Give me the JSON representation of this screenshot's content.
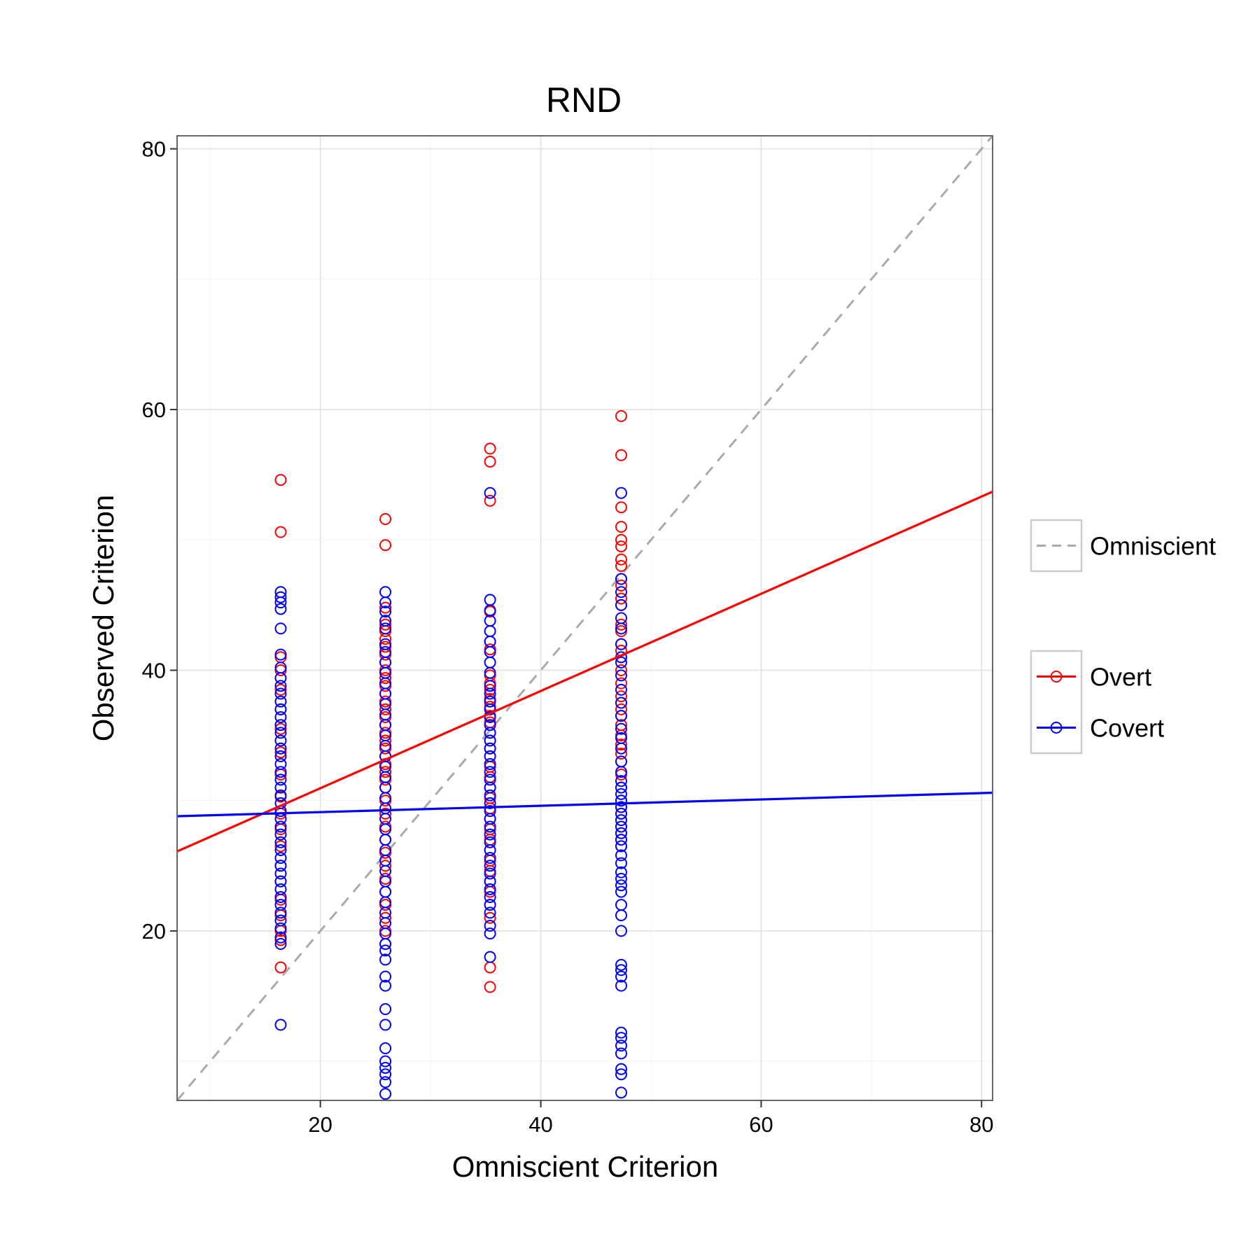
{
  "chart_data": {
    "type": "scatter",
    "title": "RND",
    "xlabel": "Omniscient Criterion",
    "ylabel": "Observed Criterion",
    "xlim": [
      7,
      81
    ],
    "ylim": [
      7,
      81
    ],
    "xticks": [
      "20",
      "40",
      "60",
      "80"
    ],
    "yticks": [
      "20",
      "40",
      "60",
      "80"
    ],
    "grid": true,
    "legend_position": "right",
    "colors": {
      "overt": "#ff0000",
      "covert": "#0000ff",
      "omniscient": "#aaaaaa"
    },
    "legend": [
      {
        "group": "reference",
        "label": "Omniscient",
        "style": "dashed",
        "marker": "none"
      },
      {
        "group": "series",
        "label": "Overt",
        "style": "solid",
        "marker": "circle"
      },
      {
        "group": "series",
        "label": "Covert",
        "style": "solid",
        "marker": "circle"
      }
    ],
    "reference_line": {
      "name": "Omniscient",
      "slope": 1,
      "intercept": 0
    },
    "fit_lines": [
      {
        "name": "Overt",
        "x": [
          7,
          81
        ],
        "y": [
          26.1,
          53.7
        ]
      },
      {
        "name": "Covert",
        "x": [
          7,
          81
        ],
        "y": [
          28.8,
          30.6
        ]
      }
    ],
    "series": [
      {
        "name": "Overt",
        "x": 16.4,
        "y": [
          54.6,
          50.6,
          41.0,
          40.0,
          38.5,
          37.0,
          35.5,
          33.7,
          32.0,
          30.3,
          29.0,
          27.8,
          26.5,
          25.0,
          23.8,
          22.4,
          21.2,
          20.0,
          19.3,
          17.2
        ]
      },
      {
        "name": "Overt",
        "x": 25.9,
        "y": [
          51.6,
          49.6,
          44.8,
          43.5,
          43.0,
          42.4,
          41.8,
          41.2,
          40.6,
          40.0,
          39.4,
          38.8,
          38.2,
          37.6,
          37.0,
          36.4,
          35.8,
          35.2,
          34.6,
          34.0,
          33.4,
          32.8,
          32.2,
          31.6,
          31.0,
          30.0,
          29.0,
          28.0,
          27.0,
          26.0,
          25.0,
          24.0,
          23.0,
          22.0,
          21.0,
          20.0,
          19.0
        ]
      },
      {
        "name": "Overt",
        "x": 35.4,
        "y": [
          57.0,
          56.0,
          53.0,
          44.5,
          42.2,
          41.6,
          39.6,
          39.0,
          38.5,
          37.8,
          37.2,
          36.5,
          36.0,
          35.2,
          34.6,
          34.0,
          33.4,
          32.6,
          31.8,
          31.0,
          30.2,
          29.4,
          28.6,
          27.8,
          27.0,
          26.2,
          25.4,
          24.6,
          23.8,
          23.0,
          22.0,
          21.0,
          17.2,
          15.7
        ]
      },
      {
        "name": "Overt",
        "x": 47.3,
        "y": [
          59.5,
          56.5,
          52.5,
          51.0,
          50.0,
          49.5,
          48.5,
          48.0,
          47.0,
          46.5,
          45.5,
          45.0,
          43.5,
          43.0,
          42.0,
          41.5,
          41.0,
          40.0,
          39.0,
          38.0,
          37.5,
          37.0,
          36.5,
          35.8,
          35.0,
          34.3,
          33.6,
          33.0,
          32.0,
          31.0,
          30.0,
          29.5,
          29.0,
          28.5,
          28.0,
          27.5,
          27.0,
          26.5
        ]
      },
      {
        "name": "Covert",
        "x": 16.4,
        "y": [
          46.0,
          45.6,
          45.2,
          44.7,
          43.2,
          41.2,
          40.2,
          39.4,
          38.8,
          38.2,
          37.6,
          37.0,
          36.4,
          35.8,
          35.2,
          34.6,
          34.0,
          33.4,
          32.8,
          32.2,
          31.6,
          31.0,
          30.4,
          29.8,
          29.2,
          28.6,
          28.0,
          27.4,
          26.8,
          26.2,
          25.6,
          25.0,
          24.4,
          23.8,
          23.2,
          22.6,
          22.0,
          21.4,
          20.8,
          20.2,
          19.5,
          19.0,
          12.8
        ]
      },
      {
        "name": "Covert",
        "x": 25.9,
        "y": [
          46.0,
          45.2,
          44.5,
          43.8,
          43.2,
          42.0,
          41.4,
          40.6,
          39.8,
          39.0,
          38.2,
          37.4,
          36.6,
          35.8,
          35.0,
          34.2,
          33.4,
          32.6,
          31.8,
          31.0,
          30.2,
          29.4,
          28.6,
          27.8,
          27.0,
          26.2,
          25.4,
          24.6,
          23.8,
          23.0,
          22.2,
          21.4,
          20.6,
          19.8,
          19.0,
          18.5,
          17.8,
          16.5,
          15.8,
          14.0,
          12.8,
          11.0,
          10.0,
          9.5,
          9.0,
          8.4,
          7.5
        ]
      },
      {
        "name": "Covert",
        "x": 35.4,
        "y": [
          53.6,
          45.4,
          44.6,
          43.8,
          43.0,
          42.2,
          41.4,
          40.6,
          39.8,
          38.8,
          38.2,
          37.6,
          37.0,
          36.4,
          35.8,
          35.2,
          34.6,
          34.0,
          33.4,
          32.8,
          32.2,
          31.6,
          31.0,
          30.4,
          29.8,
          29.2,
          28.6,
          28.0,
          27.4,
          26.8,
          26.2,
          25.6,
          25.0,
          24.4,
          23.8,
          23.2,
          22.6,
          22.0,
          21.4,
          20.4,
          19.8,
          18.0
        ]
      },
      {
        "name": "Covert",
        "x": 47.3,
        "y": [
          53.6,
          47.0,
          46.0,
          45.0,
          44.0,
          43.2,
          42.0,
          41.0,
          40.6,
          39.6,
          38.5,
          37.5,
          36.5,
          35.5,
          34.8,
          34.0,
          33.0,
          32.2,
          31.5,
          31.0,
          30.5,
          30.0,
          29.5,
          29.0,
          28.5,
          28.0,
          27.5,
          27.0,
          26.5,
          25.8,
          25.2,
          24.5,
          24.0,
          23.5,
          23.0,
          22.0,
          21.2,
          20.0,
          17.4,
          17.0,
          16.5,
          15.8,
          12.2,
          11.8,
          11.2,
          10.6,
          9.4,
          9.0,
          7.6
        ]
      }
    ]
  }
}
